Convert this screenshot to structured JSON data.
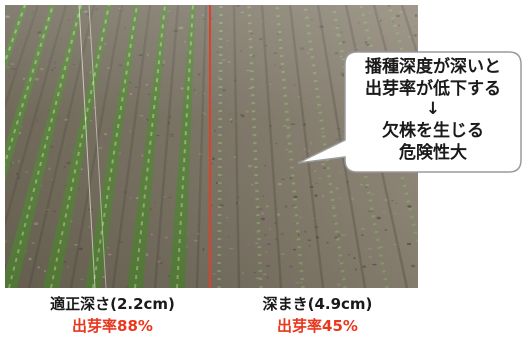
{
  "callout": {
    "lines": [
      "播種深度が深いと",
      "出芽率が低下する",
      "↓",
      "欠株を生じる",
      "危険性大"
    ]
  },
  "panels": [
    {
      "label": "適正深さ(2.2cm)",
      "rate": "出芽率88%"
    },
    {
      "label": "深まき(4.9cm)",
      "rate": "出芽率45%"
    }
  ],
  "colors": {
    "divider": "#e0402a",
    "rate_text": "#e8381e",
    "callout_border": "#9a9a9a",
    "soil": "#756d5d",
    "crop": "#557f38"
  }
}
